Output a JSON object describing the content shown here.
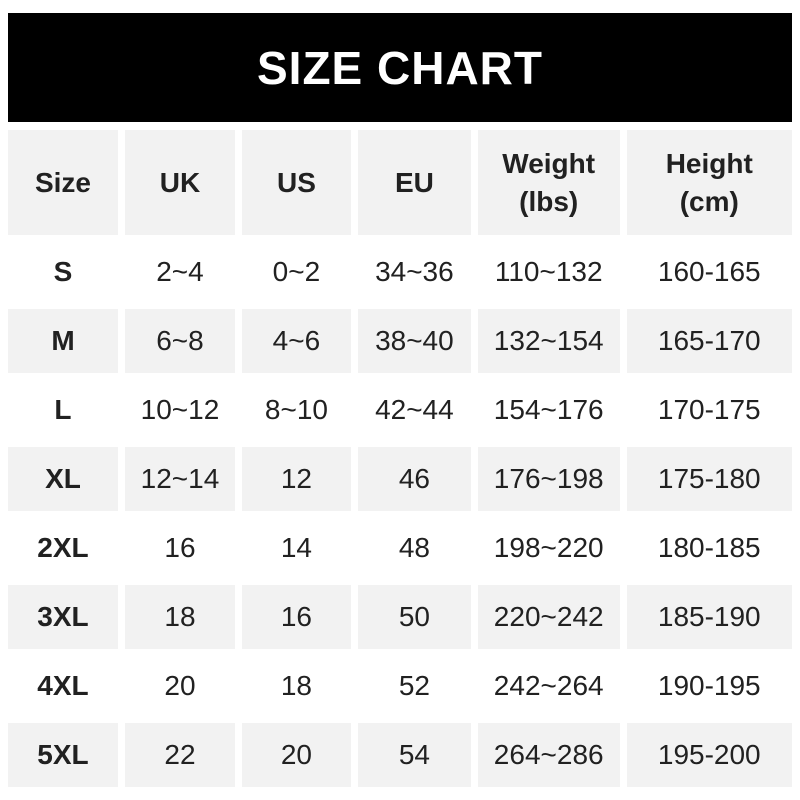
{
  "title": "SIZE CHART",
  "colors": {
    "banner_bg": "#000000",
    "banner_text": "#ffffff",
    "alt_row_bg": "#f2f2f2",
    "text": "#212121",
    "page_bg": "#ffffff"
  },
  "chart_data": {
    "type": "table",
    "title": "SIZE CHART",
    "columns": [
      "Size",
      "UK",
      "US",
      "EU",
      "Weight\n(lbs)",
      "Height\n(cm)"
    ],
    "rows": [
      {
        "size": "S",
        "uk": "2~4",
        "us": "0~2",
        "eu": "34~36",
        "weight": "110~132",
        "height": "160-165"
      },
      {
        "size": "M",
        "uk": "6~8",
        "us": "4~6",
        "eu": "38~40",
        "weight": "132~154",
        "height": "165-170"
      },
      {
        "size": "L",
        "uk": "10~12",
        "us": "8~10",
        "eu": "42~44",
        "weight": "154~176",
        "height": "170-175"
      },
      {
        "size": "XL",
        "uk": "12~14",
        "us": "12",
        "eu": "46",
        "weight": "176~198",
        "height": "175-180"
      },
      {
        "size": "2XL",
        "uk": "16",
        "us": "14",
        "eu": "48",
        "weight": "198~220",
        "height": "180-185"
      },
      {
        "size": "3XL",
        "uk": "18",
        "us": "16",
        "eu": "50",
        "weight": "220~242",
        "height": "185-190"
      },
      {
        "size": "4XL",
        "uk": "20",
        "us": "18",
        "eu": "52",
        "weight": "242~264",
        "height": "190-195"
      },
      {
        "size": "5XL",
        "uk": "22",
        "us": "20",
        "eu": "54",
        "weight": "264~286",
        "height": "195-200"
      }
    ]
  }
}
